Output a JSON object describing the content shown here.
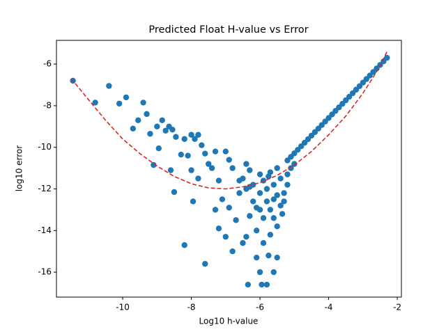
{
  "chart_data": {
    "type": "scatter",
    "title": "Predicted Float H-value vs Error",
    "xlabel": "Log10 h-value",
    "ylabel": "log10 error",
    "color": "#1f77b4",
    "x": [
      -11.45,
      -10.8,
      -10.4,
      -10.1,
      -9.9,
      -9.7,
      -9.55,
      -9.4,
      -9.3,
      -9.2,
      -9.0,
      -8.95,
      -8.85,
      -8.75,
      -8.65,
      -8.55,
      -8.45,
      -9.1,
      -8.6,
      -8.5,
      -8.3,
      -8.2,
      -8.1,
      -8.0,
      -7.9,
      -7.8,
      -7.7,
      -8.2,
      -7.95,
      -8.0,
      -7.8,
      -7.6,
      -7.5,
      -7.4,
      -7.3,
      -7.2,
      -7.0,
      -6.9,
      -6.8,
      -7.6,
      -7.3,
      -7.2,
      -7.0,
      -6.9,
      -6.8,
      -6.7,
      -6.5,
      -6.4,
      -6.35,
      -6.1,
      -6.0,
      -5.95,
      -5.8,
      -5.75,
      -5.6,
      -5.5,
      -6.3,
      -6.1,
      -5.9,
      -5.7,
      -5.5,
      -7.1,
      -6.6,
      -6.3,
      -6.2,
      -6.0,
      -5.8,
      -5.6,
      -5.4,
      -5.3,
      -5.2,
      -6.5,
      -6.4,
      -6.0,
      -5.7,
      -5.5,
      -6.2,
      -6.0,
      -5.9,
      -5.8,
      -5.7,
      -5.6,
      -5.5,
      -5.4,
      -5.3,
      -5.2,
      -5.1,
      -5.0,
      -5.9,
      -5.6,
      -6.1,
      -6.4,
      -6.6,
      -5.35,
      -5.75,
      -6.3,
      -5.2,
      -5.1,
      -5.0,
      -4.9,
      -4.8,
      -4.7,
      -4.6,
      -4.5,
      -4.4,
      -4.3,
      -4.2,
      -4.1,
      -4.0,
      -3.9,
      -3.8,
      -3.7,
      -3.6,
      -3.5,
      -3.4,
      -3.3,
      -3.2,
      -3.1,
      -3.0,
      -2.9,
      -2.8,
      -2.7,
      -2.6,
      -2.5,
      -2.4,
      -2.3
    ],
    "values": [
      -6.8,
      -7.85,
      -7.05,
      -7.9,
      -7.6,
      -9.1,
      -8.7,
      -7.85,
      -8.4,
      -9.35,
      -9.0,
      -10.05,
      -8.7,
      -9.2,
      -9.0,
      -9.15,
      -9.5,
      -10.85,
      -11.1,
      -12.15,
      -10.35,
      -9.6,
      -10.4,
      -9.4,
      -9.6,
      -9.4,
      -9.9,
      -14.7,
      -12.6,
      -11.1,
      -11.5,
      -10.3,
      -10.8,
      -11.0,
      -10.2,
      -11.6,
      -10.2,
      -10.6,
      -11.0,
      -15.6,
      -13.0,
      -13.9,
      -14.3,
      -12.9,
      -15.0,
      -13.5,
      -14.6,
      -14.3,
      -16.6,
      -15.3,
      -16.0,
      -16.6,
      -16.6,
      -15.2,
      -16.0,
      -15.3,
      -13.3,
      -14.0,
      -14.6,
      -14.2,
      -13.8,
      -12.5,
      -12.2,
      -11.1,
      -12.6,
      -13.0,
      -12.0,
      -12.5,
      -12.8,
      -12.2,
      -11.8,
      -11.5,
      -10.8,
      -11.3,
      -11.2,
      -11.0,
      -11.8,
      -12.2,
      -11.6,
      -12.6,
      -13.0,
      -11.8,
      -12.3,
      -11.5,
      -12.6,
      -11.3,
      -11.0,
      -10.8,
      -13.4,
      -13.4,
      -12.9,
      -12.0,
      -11.6,
      -13.2,
      -11.4,
      -11.9,
      -10.63,
      -10.46,
      -10.29,
      -10.12,
      -9.95,
      -9.78,
      -9.61,
      -9.44,
      -9.27,
      -9.1,
      -8.93,
      -8.76,
      -8.59,
      -8.42,
      -8.25,
      -8.08,
      -7.91,
      -7.74,
      -7.57,
      -7.4,
      -7.23,
      -7.06,
      -6.89,
      -6.72,
      -6.55,
      -6.38,
      -6.21,
      -6.04,
      -5.87,
      -5.7
    ],
    "fit": {
      "color": "#d62728",
      "x": [
        -11.5,
        -11,
        -10.5,
        -10,
        -9.5,
        -9,
        -8.5,
        -8,
        -7.5,
        -7,
        -6.5,
        -6,
        -5.5,
        -5,
        -4.5,
        -4,
        -3.5,
        -3,
        -2.5,
        -2.3
      ],
      "values": [
        -6.7,
        -7.7,
        -8.7,
        -9.6,
        -10.3,
        -10.9,
        -11.4,
        -11.75,
        -11.95,
        -12.0,
        -11.9,
        -11.7,
        -11.35,
        -10.85,
        -10.2,
        -9.4,
        -8.5,
        -7.4,
        -6.1,
        -5.4
      ]
    },
    "xlim": [
      -11.93,
      -1.88
    ],
    "ylim": [
      -17.2,
      -4.86
    ],
    "xticks": [
      -10,
      -8,
      -6,
      -4,
      -2
    ],
    "yticks": [
      -16,
      -14,
      -12,
      -10,
      -8,
      -6
    ]
  }
}
